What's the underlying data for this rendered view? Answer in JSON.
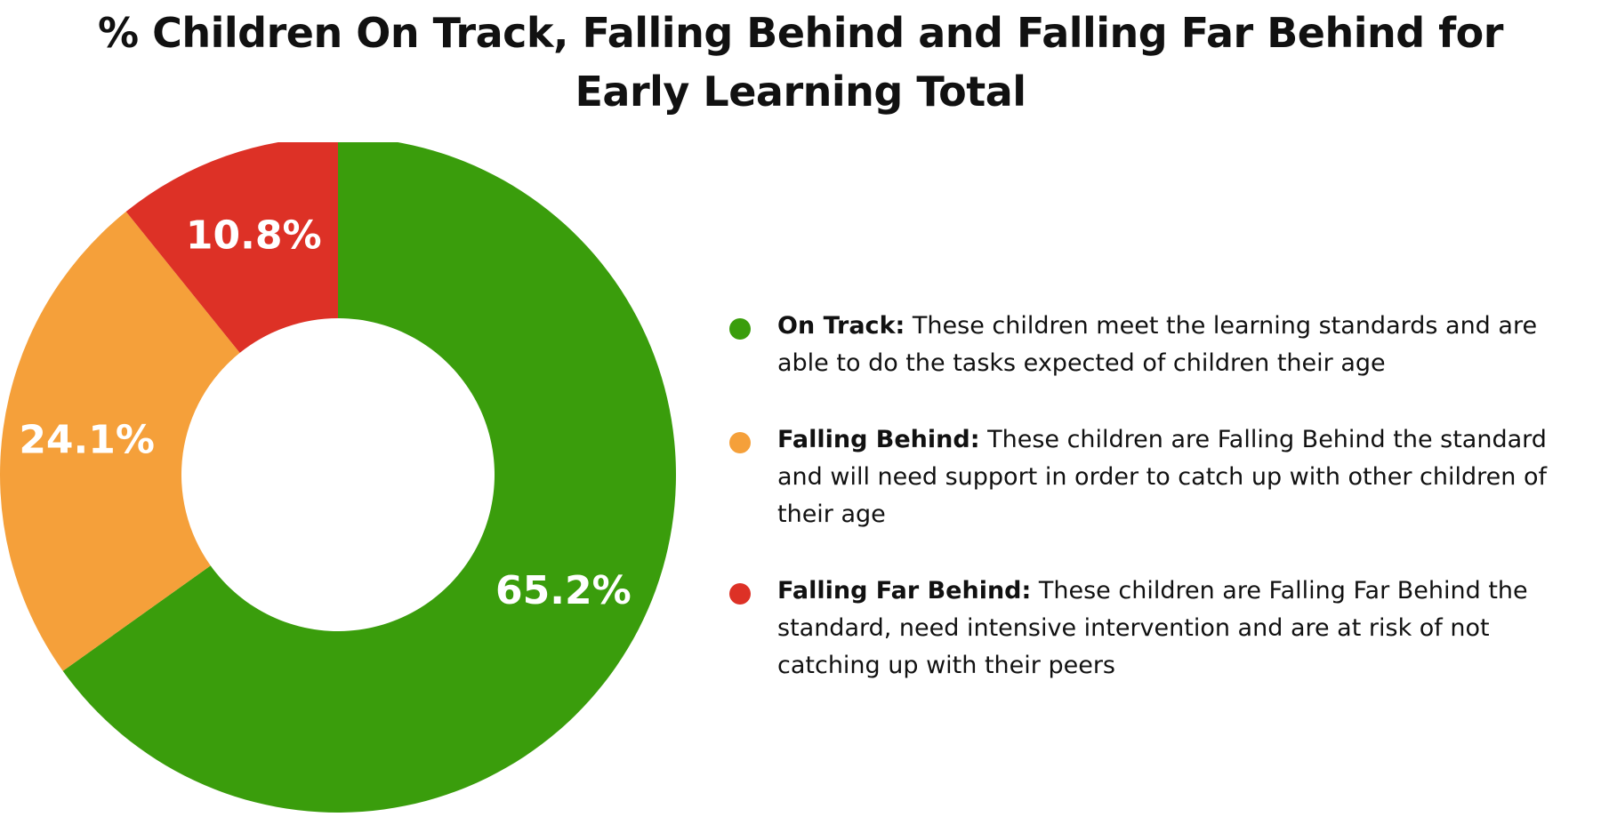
{
  "title": "% Children On Track, Falling Behind and Falling Far Behind for Early Learning Total",
  "chart_data": {
    "type": "pie",
    "donut": true,
    "categories": [
      "On Track",
      "Falling Behind",
      "Falling Far Behind"
    ],
    "values": [
      65.2,
      24.1,
      10.8
    ],
    "labels": [
      "65.2%",
      "24.1%",
      "10.8%"
    ],
    "colors": [
      "#3a9d0c",
      "#f5a03a",
      "#dd3126"
    ],
    "title": "% Children On Track, Falling Behind and Falling Far Behind for Early Learning Total",
    "legend_position": "right"
  },
  "legend": [
    {
      "name": "On Track:",
      "description": " These children meet the learning standards and are able to do the tasks expected of children their age",
      "color": "#3a9d0c"
    },
    {
      "name": "Falling Behind:",
      "description": " These children are Falling Behind the standard and will need support in order to catch up with other children of their age",
      "color": "#f5a03a"
    },
    {
      "name": "Falling Far Behind:",
      "description": " These children are Falling Far Behind the standard, need intensive intervention and are at risk of not catching up with their peers",
      "color": "#dd3126"
    }
  ]
}
